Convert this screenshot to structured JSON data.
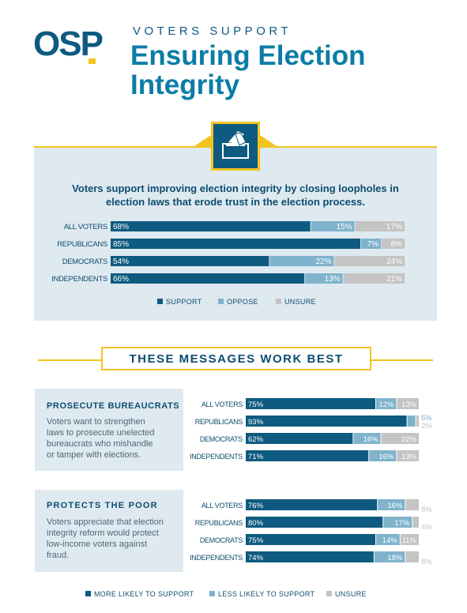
{
  "header": {
    "logo_text": "OSP",
    "kicker": "VOTERS SUPPORT",
    "title_line1": "Ensuring Election",
    "title_line2": "Integrity"
  },
  "icon": "ballot-box-icon",
  "colors": {
    "support": "#0e5a80",
    "oppose": "#7fb3cc",
    "unsure": "#c4c4c4",
    "gold": "#f3c41f",
    "panel": "#dee9f0",
    "title": "#0b7da6"
  },
  "section1": {
    "headline_line1": "Voters support improving election integrity by closing loopholes in",
    "headline_line2": "election laws that erode trust in the election process."
  },
  "messages_title": "THESE MESSAGES WORK BEST",
  "card1": {
    "title": "PROSECUTE BUREAUCRATS",
    "text_lines": [
      "Voters want to strengthen",
      "laws to prosecute unelected",
      "bureaucrats who mishandle",
      "or tamper with elections."
    ]
  },
  "card2": {
    "title": "PROTECTS THE POOR",
    "text_lines": [
      "Voters appreciate that election",
      "integrity reform would protect",
      "low-income voters against",
      "fraud."
    ]
  },
  "chart_data": [
    {
      "type": "bar",
      "orientation": "horizontal-stacked",
      "categories": [
        "ALL VOTERS",
        "REPUBLICANS",
        "DEMOCRATS",
        "INDEPENDENTS"
      ],
      "series": [
        {
          "name": "SUPPORT",
          "values": [
            68,
            85,
            54,
            66
          ]
        },
        {
          "name": "OPPOSE",
          "values": [
            15,
            7,
            22,
            13
          ]
        },
        {
          "name": "UNSURE",
          "values": [
            17,
            8,
            24,
            21
          ]
        }
      ],
      "legend": "bottom"
    },
    {
      "type": "bar",
      "orientation": "horizontal-stacked",
      "categories": [
        "ALL VOTERS",
        "REPUBLICANS",
        "DEMOCRATS",
        "INDEPENDENTS"
      ],
      "series": [
        {
          "name": "MORE LIKELY TO SUPPORT",
          "values": [
            75,
            93,
            62,
            71
          ]
        },
        {
          "name": "LESS LIKELY TO SUPPORT",
          "values": [
            12,
            5,
            16,
            16
          ]
        },
        {
          "name": "UNSURE",
          "values": [
            13,
            2,
            22,
            13
          ]
        }
      ]
    },
    {
      "type": "bar",
      "orientation": "horizontal-stacked",
      "categories": [
        "ALL VOTERS",
        "REPUBLICANS",
        "DEMOCRATS",
        "INDEPENDENTS"
      ],
      "series": [
        {
          "name": "MORE LIKELY TO SUPPORT",
          "values": [
            76,
            80,
            75,
            74
          ]
        },
        {
          "name": "LESS LIKELY TO SUPPORT",
          "values": [
            16,
            17,
            14,
            18
          ]
        },
        {
          "name": "UNSURE",
          "values": [
            8,
            4,
            11,
            8
          ]
        }
      ],
      "legend": "bottom"
    }
  ]
}
